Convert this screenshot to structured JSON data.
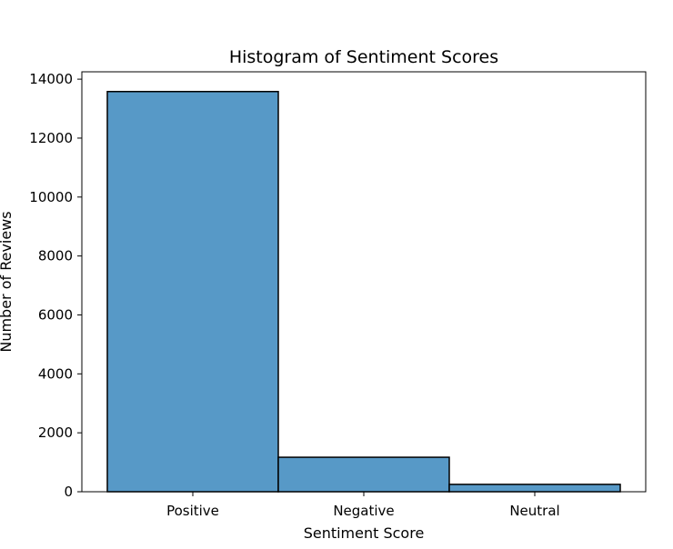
{
  "chart_data": {
    "type": "bar",
    "title": "Histogram of Sentiment Scores",
    "xlabel": "Sentiment Score",
    "ylabel": "Number of Reviews",
    "categories": [
      "Positive",
      "Negative",
      "Neutral"
    ],
    "values": [
      13580,
      1170,
      250
    ],
    "ylim": [
      0,
      14250
    ],
    "yticks": [
      0,
      2000,
      4000,
      6000,
      8000,
      10000,
      12000,
      14000
    ],
    "grid": false,
    "bar_color": "#5799c7",
    "edge_color": "#000000"
  }
}
